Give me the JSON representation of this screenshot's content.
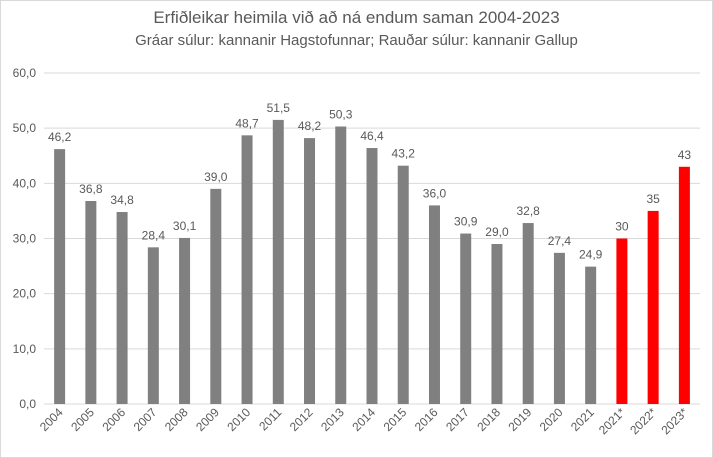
{
  "chart_data": {
    "type": "bar",
    "title": "Erfiðleikar heimila við að ná endum saman 2004-2023",
    "subtitle": "Gráar súlur: kannanir Hagstofunnar; Rauðar súlur: kannanir Gallup",
    "categories": [
      "2004",
      "2005",
      "2006",
      "2007",
      "2008",
      "2009",
      "2010",
      "2011",
      "2012",
      "2013",
      "2014",
      "2015",
      "2016",
      "2017",
      "2018",
      "2019",
      "2020",
      "2021",
      "2021*",
      "2022*",
      "2023*"
    ],
    "values": [
      46.2,
      36.8,
      34.8,
      28.4,
      30.1,
      39.0,
      48.7,
      51.5,
      48.2,
      50.3,
      46.4,
      43.2,
      36.0,
      30.9,
      29.0,
      32.8,
      27.4,
      24.9,
      30,
      35,
      43
    ],
    "value_labels": [
      "46,2",
      "36,8",
      "34,8",
      "28,4",
      "30,1",
      "39,0",
      "48,7",
      "51,5",
      "48,2",
      "50,3",
      "46,4",
      "43,2",
      "36,0",
      "30,9",
      "29,0",
      "32,8",
      "27,4",
      "24,9",
      "30",
      "35",
      "43"
    ],
    "bar_colors": [
      "#808080",
      "#808080",
      "#808080",
      "#808080",
      "#808080",
      "#808080",
      "#808080",
      "#808080",
      "#808080",
      "#808080",
      "#808080",
      "#808080",
      "#808080",
      "#808080",
      "#808080",
      "#808080",
      "#808080",
      "#808080",
      "#ff0000",
      "#ff0000",
      "#ff0000"
    ],
    "series": [
      {
        "source": "Hagstofan",
        "color": "#808080"
      },
      {
        "source": "Gallup",
        "color": "#ff0000"
      }
    ],
    "ylim": [
      0,
      60
    ],
    "yticks": [
      0,
      10,
      20,
      30,
      40,
      50,
      60
    ],
    "ytick_labels": [
      "0,0",
      "10,0",
      "20,0",
      "30,0",
      "40,0",
      "50,0",
      "60,0"
    ],
    "xlabel": "",
    "ylabel": "",
    "grid": true,
    "legend": "none"
  },
  "colors": {
    "grid": "#d9d9d9",
    "text": "#595959"
  }
}
